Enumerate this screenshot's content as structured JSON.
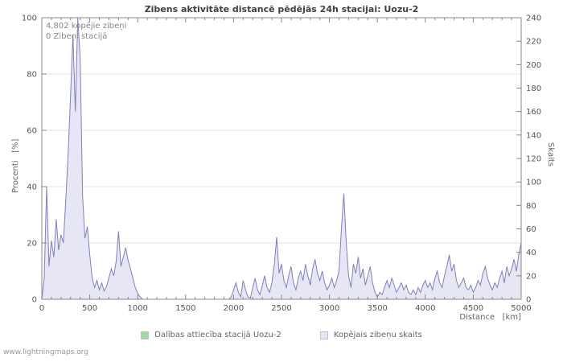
{
  "page": {
    "footer": "www.lightningmaps.org"
  },
  "annotations": {
    "total": "4,802 kopējie zibeņi",
    "station": "0 Zibeņi stacijā"
  },
  "axes": {
    "left_label": "Procenti   [%]",
    "right_label": "Skaits",
    "x_label": "Distance   [km]"
  },
  "legend": {
    "items": [
      {
        "label": "Dalības attiecība stacijā Uozu-2",
        "color": "#a0d6a0"
      },
      {
        "label": "Kopējais zibeņu skaits",
        "color": "#e6e6f5"
      }
    ]
  },
  "chart_data": {
    "type": "area",
    "title": "Zibens aktivitāte distancē pēdējās 24h stacijai: Uozu-2",
    "xlabel": "Distance [km]",
    "ylabel_left": "Procenti [%]",
    "ylabel_right": "Skaits",
    "xlim": [
      0,
      5000
    ],
    "ylim_left": [
      0,
      100
    ],
    "ylim_right": [
      0,
      240
    ],
    "x_tick_step": 500,
    "x_minor_step": 100,
    "y_left_tick_step": 20,
    "y_right_tick_step": 20,
    "grid": "horizontal",
    "legend_position": "bottom",
    "x_step": 25,
    "series": [
      {
        "name": "Dalības attiecība stacijā Uozu-2",
        "axis": "left",
        "legend_color": "#a0d6a0",
        "constant_value": 0
      },
      {
        "name": "Kopējais zibeņu skaits",
        "axis": "right",
        "legend_color": "#e6e6f5",
        "fill_color": "#e6e6f5",
        "line_color": "#8080b8",
        "values": [
          0,
          18,
          96,
          28,
          50,
          36,
          68,
          42,
          55,
          48,
          85,
          125,
          175,
          225,
          160,
          240,
          205,
          88,
          52,
          62,
          38,
          18,
          10,
          16,
          8,
          14,
          7,
          11,
          18,
          26,
          20,
          32,
          58,
          28,
          36,
          44,
          33,
          26,
          18,
          10,
          5,
          2,
          0,
          0,
          0,
          0,
          0,
          0,
          0,
          0,
          0,
          0,
          0,
          0,
          0,
          0,
          0,
          0,
          0,
          0,
          0,
          0,
          0,
          0,
          0,
          0,
          0,
          0,
          0,
          0,
          0,
          0,
          0,
          0,
          0,
          0,
          0,
          0,
          0,
          2,
          8,
          14,
          6,
          2,
          16,
          8,
          2,
          1,
          10,
          18,
          8,
          4,
          12,
          20,
          10,
          6,
          14,
          30,
          53,
          22,
          30,
          16,
          10,
          20,
          28,
          14,
          8,
          18,
          24,
          16,
          30,
          20,
          12,
          26,
          34,
          22,
          16,
          24,
          14,
          8,
          12,
          18,
          10,
          16,
          24,
          60,
          90,
          48,
          20,
          10,
          30,
          22,
          36,
          18,
          26,
          12,
          20,
          28,
          14,
          6,
          2,
          6,
          4,
          10,
          16,
          10,
          18,
          12,
          6,
          10,
          14,
          8,
          12,
          6,
          4,
          8,
          4,
          10,
          6,
          12,
          16,
          10,
          14,
          8,
          18,
          24,
          14,
          10,
          20,
          28,
          38,
          24,
          30,
          16,
          10,
          14,
          18,
          10,
          8,
          12,
          6,
          10,
          16,
          12,
          22,
          28,
          18,
          12,
          8,
          14,
          10,
          18,
          24,
          14,
          28,
          20,
          26,
          34,
          24,
          38,
          48
        ]
      }
    ]
  }
}
